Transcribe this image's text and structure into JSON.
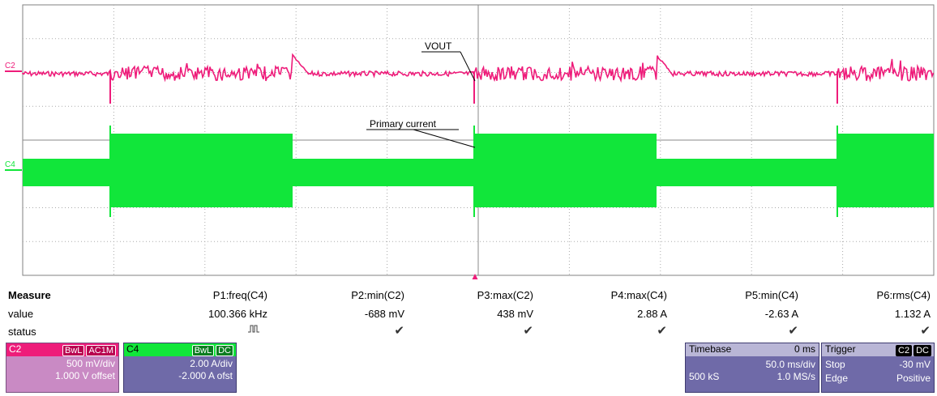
{
  "waveform": {
    "labels": {
      "vout": "VOUT",
      "primary": "Primary current"
    },
    "channels": [
      {
        "id": "C2",
        "color": "#ee1c7a"
      },
      {
        "id": "C4",
        "color": "#11e63a"
      }
    ]
  },
  "measure": {
    "title": "Measure",
    "row_value": "value",
    "row_status": "status",
    "columns": [
      {
        "name": "P1:freq(C4)",
        "value": "100.366 kHz",
        "status_icon": "pulse-icon"
      },
      {
        "name": "P2:min(C2)",
        "value": "-688 mV",
        "status_icon": "check-icon"
      },
      {
        "name": "P3:max(C2)",
        "value": "438 mV",
        "status_icon": "check-icon"
      },
      {
        "name": "P4:max(C4)",
        "value": "2.88 A",
        "status_icon": "check-icon"
      },
      {
        "name": "P5:min(C4)",
        "value": "-2.63 A",
        "status_icon": "check-icon"
      },
      {
        "name": "P6:rms(C4)",
        "value": "1.132 A",
        "status_icon": "check-icon"
      }
    ]
  },
  "channel_badges": {
    "c2": {
      "id": "C2",
      "chips": [
        "BwL",
        "AC1M"
      ],
      "line1": "500 mV/div",
      "line2": "1.000 V offset",
      "color": "#ee1c7a"
    },
    "c4": {
      "id": "C4",
      "chips": [
        "BwL",
        "DC"
      ],
      "line1": "2.00 A/div",
      "line2": "-2.000 A ofst",
      "color": "#11e63a"
    }
  },
  "timebase": {
    "label": "Timebase",
    "delay": "0 ms",
    "div": "50.0 ms/div",
    "samples": "500 kS",
    "rate": "1.0 MS/s"
  },
  "trigger": {
    "label": "Trigger",
    "source_chip": "C2",
    "coupling_chip": "DC",
    "mode": "Stop",
    "level": "-30 mV",
    "type": "Edge",
    "slope": "Positive"
  }
}
